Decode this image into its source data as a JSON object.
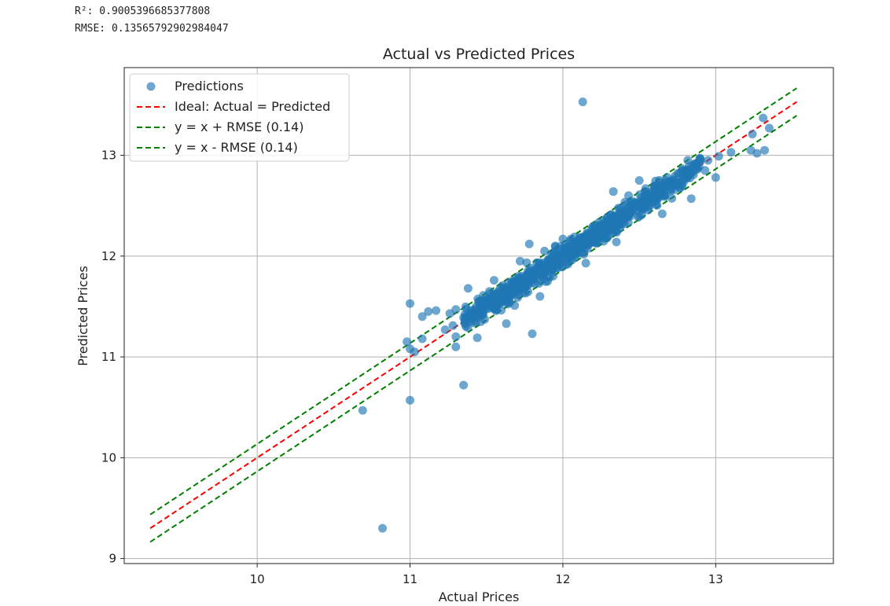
{
  "output": {
    "r2_line": "R²: 0.9005396685377808",
    "rmse_line": "RMSE: 0.13565792902984047"
  },
  "chart_data": {
    "type": "scatter",
    "title": "Actual vs Predicted Prices",
    "xlabel": "Actual Prices",
    "ylabel": "Predicted Prices",
    "xlim": [
      9.13,
      13.77
    ],
    "ylim": [
      8.95,
      13.87
    ],
    "xticks": [
      10,
      11,
      12,
      13
    ],
    "yticks": [
      9,
      10,
      11,
      12,
      13
    ],
    "grid": true,
    "legend_position": "upper-left",
    "rmse": 0.13565792902984047,
    "colors": {
      "points": "#1f77b4",
      "ideal": "#ff0000",
      "rmse_bands": "#008000"
    },
    "legend": [
      {
        "label": "Predictions",
        "style": "marker"
      },
      {
        "label": "Ideal: Actual = Predicted",
        "style": "dashed-red"
      },
      {
        "label": "y = x + RMSE (0.14)",
        "style": "dashed-green"
      },
      {
        "label": "y = x - RMSE (0.14)",
        "style": "dashed-green"
      }
    ],
    "lines": [
      {
        "name": "Ideal: Actual = Predicted",
        "x": [
          9.3,
          13.53
        ],
        "y": [
          9.3,
          13.53
        ]
      },
      {
        "name": "y = x + RMSE (0.14)",
        "x": [
          9.3,
          13.53
        ],
        "y": [
          9.436,
          13.666
        ]
      },
      {
        "name": "y = x - RMSE (0.14)",
        "x": [
          9.3,
          13.53
        ],
        "y": [
          9.164,
          13.394
        ]
      }
    ],
    "points": [
      [
        10.82,
        9.3
      ],
      [
        10.69,
        10.47
      ],
      [
        11.0,
        10.57
      ],
      [
        11.35,
        10.72
      ],
      [
        10.98,
        11.15
      ],
      [
        11.0,
        11.53
      ],
      [
        11.08,
        11.4
      ],
      [
        11.12,
        11.45
      ],
      [
        11.17,
        11.46
      ],
      [
        11.0,
        11.08
      ],
      [
        11.03,
        11.05
      ],
      [
        11.08,
        11.18
      ],
      [
        11.23,
        11.27
      ],
      [
        11.28,
        11.31
      ],
      [
        11.3,
        11.1
      ],
      [
        11.3,
        11.2
      ],
      [
        11.26,
        11.43
      ],
      [
        11.3,
        11.47
      ],
      [
        11.35,
        11.39
      ],
      [
        11.38,
        11.68
      ],
      [
        11.44,
        11.19
      ],
      [
        11.46,
        11.46
      ],
      [
        11.48,
        11.61
      ],
      [
        11.55,
        11.76
      ],
      [
        11.63,
        11.33
      ],
      [
        11.8,
        11.23
      ],
      [
        11.78,
        12.12
      ],
      [
        11.88,
        12.05
      ],
      [
        11.95,
        12.1
      ],
      [
        12.0,
        12.17
      ],
      [
        12.13,
        13.53
      ],
      [
        12.33,
        12.64
      ],
      [
        12.43,
        12.6
      ],
      [
        12.5,
        12.75
      ],
      [
        12.55,
        12.52
      ],
      [
        12.65,
        12.42
      ],
      [
        12.84,
        12.57
      ],
      [
        12.93,
        12.85
      ],
      [
        13.0,
        12.78
      ],
      [
        13.02,
        12.99
      ],
      [
        13.1,
        13.03
      ],
      [
        13.23,
        13.05
      ],
      [
        13.27,
        13.02
      ],
      [
        13.32,
        13.05
      ],
      [
        13.35,
        13.27
      ],
      [
        13.31,
        13.37
      ],
      [
        13.24,
        13.21
      ],
      [
        12.9,
        12.96
      ],
      [
        12.95,
        12.95
      ],
      [
        12.85,
        12.9
      ],
      [
        12.78,
        12.85
      ],
      [
        12.7,
        12.72
      ],
      [
        12.6,
        12.7
      ],
      [
        12.35,
        12.14
      ],
      [
        12.15,
        11.93
      ],
      [
        12.05,
        12.15
      ],
      [
        11.9,
        11.75
      ],
      [
        11.85,
        11.6
      ],
      [
        11.72,
        11.95
      ],
      [
        11.65,
        11.58
      ],
      [
        11.58,
        11.62
      ],
      [
        11.52,
        11.65
      ],
      [
        11.45,
        11.55
      ],
      [
        11.4,
        11.43
      ]
    ]
  }
}
